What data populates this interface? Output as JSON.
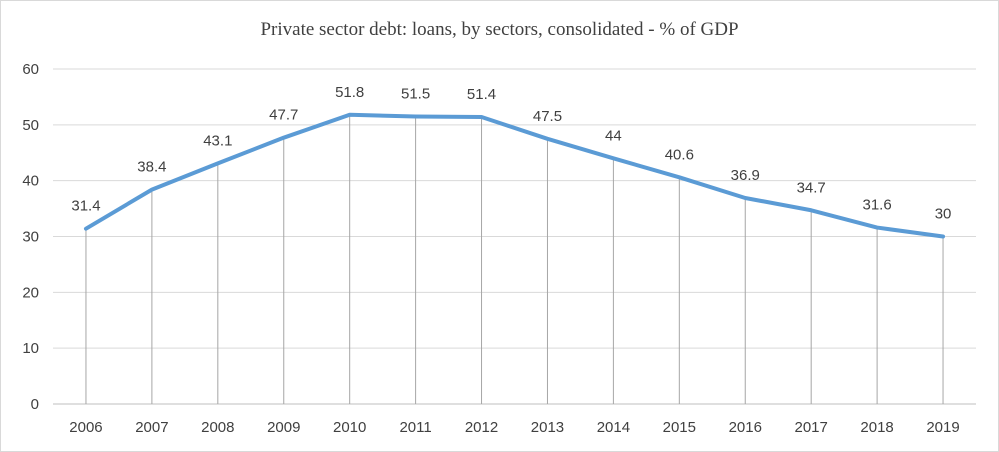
{
  "chart_data": {
    "type": "line",
    "title": "Private sector debt: loans, by sectors, consolidated - % of GDP",
    "categories": [
      "2006",
      "2007",
      "2008",
      "2009",
      "2010",
      "2011",
      "2012",
      "2013",
      "2014",
      "2015",
      "2016",
      "2017",
      "2018",
      "2019"
    ],
    "series": [
      {
        "values": [
          31.4,
          38.4,
          43.1,
          47.7,
          51.8,
          51.5,
          51.4,
          47.5,
          44,
          40.6,
          36.9,
          34.7,
          31.6,
          30
        ],
        "color": "#5b9bd5"
      }
    ],
    "data_labels": [
      "31.4",
      "38.4",
      "43.1",
      "47.7",
      "51.8",
      "51.5",
      "51.4",
      "47.5",
      "44",
      "40.6",
      "36.9",
      "34.7",
      "31.6",
      "30"
    ],
    "ylim": [
      0,
      60
    ],
    "yticks": [
      "0",
      "10",
      "20",
      "30",
      "40",
      "50",
      "60"
    ],
    "xlabel": "",
    "ylabel": "",
    "grid": true,
    "legend": "none"
  }
}
